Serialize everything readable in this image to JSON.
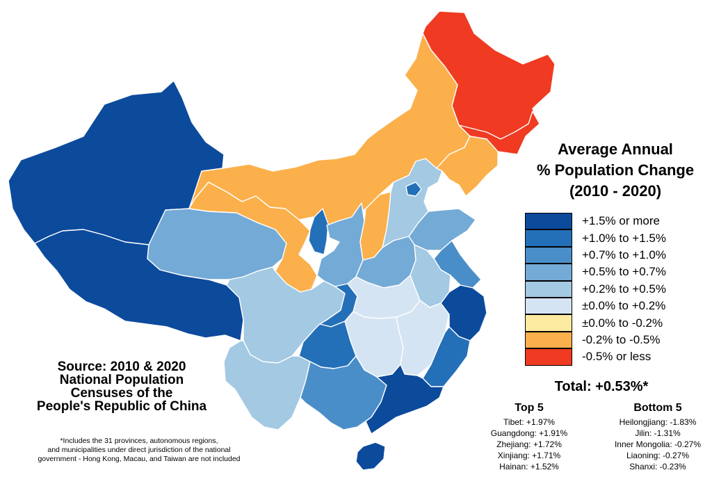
{
  "title": {
    "line1": "Average Annual",
    "line2": "% Population Change",
    "line3": "(2010 - 2020)"
  },
  "legend": [
    {
      "label": "+1.5% or more",
      "color": "#0c4a9c"
    },
    {
      "label": "+1.0% to +1.5%",
      "color": "#2470b8"
    },
    {
      "label": "+0.7% to +1.0%",
      "color": "#4a8ec9"
    },
    {
      "label": "+0.5% to +0.7%",
      "color": "#74aad6"
    },
    {
      "label": "+0.2% to +0.5%",
      "color": "#a3c9e3"
    },
    {
      "label": "±0.0% to +0.2%",
      "color": "#d4e4f3"
    },
    {
      "label": "±0.0% to -0.2%",
      "color": "#fbeaa0"
    },
    {
      "label": "-0.2% to -0.5%",
      "color": "#fbb04b"
    },
    {
      "label": "-0.5% or less",
      "color": "#f03a22"
    }
  ],
  "total": "Total: +0.53%*",
  "top5": {
    "heading": "Top 5",
    "items": [
      "Tibet: +1.97%",
      "Guangdong: +1.91%",
      "Zhejiang: +1.72%",
      "Xinjiang: +1.71%",
      "Hainan: +1.52%"
    ]
  },
  "bottom5": {
    "heading": "Bottom 5",
    "items": [
      "Heilongjiang: -1.83%",
      "Jilin: -1.31%",
      "Inner Mongolia: -0.27%",
      "Liaoning: -0.27%",
      "Shanxi: -0.23%"
    ]
  },
  "source": {
    "line1": "Source: 2010 & 2020",
    "line2": "National Population",
    "line3": "Censuses of the",
    "line4": "People's Republic of China"
  },
  "footnote": {
    "line1": "*Includes the 31 provinces, autonomous regions,",
    "line2": "and municipalities under direct jurisdiction of the national",
    "line3": "government - Hong Kong, Macau, and Taiwan are not included"
  }
}
